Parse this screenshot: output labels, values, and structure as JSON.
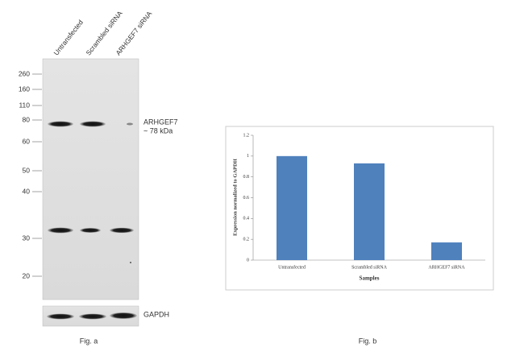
{
  "blot": {
    "lanes": [
      "Untransfected",
      "Scrambled siRNA",
      "ARHGEF7 siRNA"
    ],
    "markers": [
      "260",
      "160",
      "110",
      "80",
      "60",
      "50",
      "40",
      "30",
      "20"
    ],
    "target_label": "ARHGEF7",
    "size_label": "~ 78 kDa",
    "loading_label": "GAPDH",
    "caption": "Fig. a"
  },
  "chart_data": {
    "type": "bar",
    "categories": [
      "Untransfected",
      "Scrambled siRNA",
      "ARHGEF7 siRNA"
    ],
    "values": [
      1,
      0.93,
      0.17
    ],
    "color": "#4f81bd",
    "ylim": [
      0,
      1.2
    ],
    "yticks": [
      0,
      0.2,
      0.4,
      0.6,
      0.8,
      1,
      1.2
    ],
    "xlabel": "Samples",
    "ylabel": "Expression normalized to GAPDH",
    "caption": "Fig. b"
  }
}
